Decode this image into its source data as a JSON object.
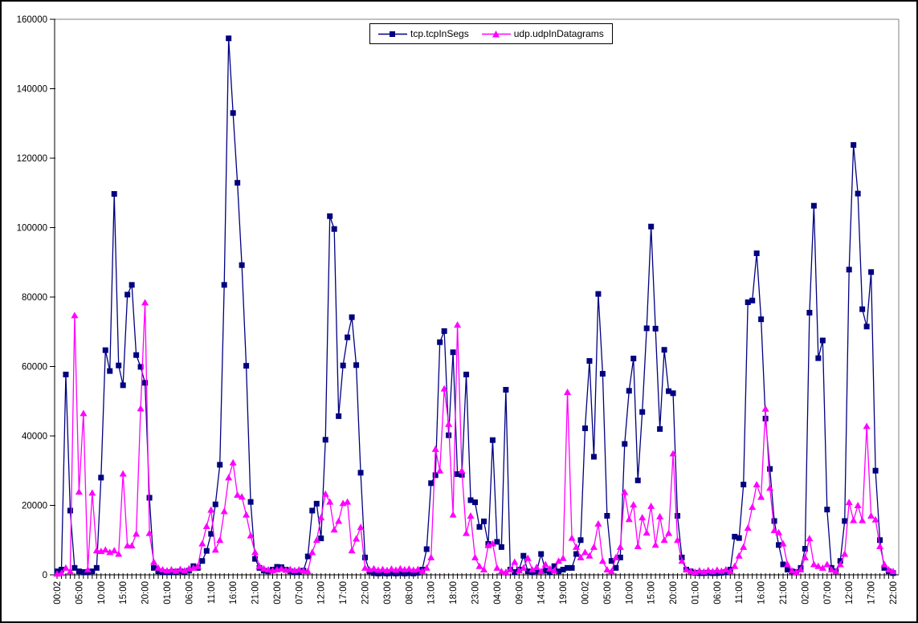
{
  "chart_data": {
    "type": "line",
    "title": "",
    "xlabel": "",
    "ylabel": "",
    "grid": false,
    "legend_position": "top-center",
    "ylim": [
      0,
      160000
    ],
    "ytick_step": 20000,
    "y_ticks": [
      0,
      20000,
      40000,
      60000,
      80000,
      100000,
      120000,
      140000,
      160000
    ],
    "n_points": 191,
    "label_every_n_points": 5,
    "x_labels": [
      "00:02",
      "05:00",
      "10:00",
      "15:00",
      "20:00",
      "01:00",
      "06:00",
      "11:00",
      "16:00",
      "21:00",
      "02:00",
      "07:00",
      "12:00",
      "17:00",
      "22:00",
      "03:00",
      "08:00",
      "13:00",
      "18:00",
      "23:00",
      "04:00",
      "09:00",
      "14:00",
      "19:00",
      "00:02",
      "05:00",
      "10:00",
      "15:00",
      "20:00",
      "01:00",
      "06:00",
      "11:00",
      "16:00",
      "21:00",
      "02:00",
      "07:00",
      "12:00",
      "17:00",
      "22:00"
    ],
    "series": [
      {
        "name": "tcp.tcpInSegs",
        "color": "#000080",
        "marker": "square",
        "values": [
          1000,
          1500,
          57700,
          18500,
          2000,
          1000,
          800,
          800,
          1000,
          2000,
          28000,
          64700,
          58700,
          109700,
          60300,
          54600,
          80700,
          83500,
          63300,
          59900,
          55300,
          22200,
          2000,
          1000,
          800,
          700,
          800,
          900,
          1000,
          900,
          1200,
          2500,
          2000,
          4000,
          6900,
          11800,
          20300,
          31700,
          83500,
          154500,
          133000,
          112900,
          89200,
          60200,
          21000,
          4600,
          2000,
          1200,
          1000,
          1500,
          2300,
          2200,
          1500,
          1000,
          800,
          900,
          1200,
          5300,
          18500,
          20500,
          10500,
          38900,
          103300,
          99600,
          45700,
          60300,
          68400,
          74200,
          60400,
          29400,
          5000,
          1000,
          500,
          400,
          500,
          400,
          500,
          400,
          500,
          400,
          500,
          400,
          600,
          1500,
          7400,
          26400,
          28700,
          67000,
          70200,
          40200,
          64100,
          29000,
          28800,
          57700,
          21500,
          20900,
          13800,
          15400,
          8900,
          38800,
          9500,
          8000,
          53300,
          1500,
          800,
          1500,
          5500,
          1000,
          800,
          1000,
          6000,
          1200,
          800,
          2500,
          1000,
          1500,
          2000,
          2000,
          6000,
          10000,
          42200,
          61600,
          34000,
          80900,
          57900,
          17000,
          4000,
          2000,
          5000,
          37700,
          53000,
          62300,
          27200,
          46900,
          71000,
          100300,
          70900,
          42000,
          64800,
          52900,
          52300,
          17000,
          5000,
          1500,
          1000,
          600,
          500,
          500,
          600,
          500,
          500,
          600,
          800,
          1500,
          11000,
          10600,
          26000,
          78500,
          79000,
          92600,
          73600,
          45000,
          30500,
          15500,
          8600,
          3000,
          1500,
          1000,
          800,
          2000,
          7500,
          75500,
          106300,
          62400,
          67500,
          18800,
          2000,
          1000,
          4000,
          15500,
          87900,
          123800,
          109800,
          76500,
          71500,
          87200,
          30000,
          10000,
          2000,
          1000,
          500
        ]
      },
      {
        "name": "udp.udpInDatagrams",
        "color": "#FF00FF",
        "marker": "triangle",
        "values": [
          300,
          500,
          2000,
          1000,
          74700,
          23900,
          46500,
          1500,
          23600,
          7000,
          6800,
          7200,
          6500,
          7000,
          6000,
          29100,
          8400,
          8400,
          11800,
          47900,
          78400,
          12000,
          3700,
          2000,
          1500,
          1200,
          1500,
          1100,
          1600,
          1200,
          1800,
          2000,
          2500,
          9000,
          14000,
          18700,
          7200,
          10000,
          18300,
          28000,
          32300,
          23000,
          22500,
          17300,
          11300,
          6500,
          2500,
          1800,
          1500,
          1200,
          1500,
          1800,
          1400,
          1600,
          1300,
          1500,
          1200,
          1000,
          6500,
          10000,
          16500,
          23300,
          21000,
          13000,
          15500,
          20600,
          21000,
          7000,
          10400,
          13700,
          2000,
          1500,
          1800,
          1400,
          1600,
          1300,
          1700,
          1400,
          1800,
          1500,
          1700,
          1400,
          1600,
          1000,
          2000,
          5000,
          36200,
          30000,
          53600,
          43400,
          17300,
          72000,
          30000,
          12000,
          17000,
          5000,
          2500,
          1500,
          8500,
          9000,
          2000,
          1000,
          800,
          1500,
          3700,
          1200,
          2000,
          4800,
          1500,
          2200,
          1000,
          3000,
          1800,
          1200,
          4000,
          4800,
          52600,
          10600,
          8000,
          5000,
          6500,
          5500,
          8000,
          14700,
          4000,
          1500,
          1000,
          5000,
          8000,
          23800,
          16000,
          20200,
          8200,
          16500,
          12100,
          19800,
          8600,
          16800,
          10000,
          12000,
          34900,
          10000,
          4000,
          1500,
          1000,
          800,
          1200,
          900,
          1300,
          1000,
          1400,
          1100,
          1500,
          1000,
          2500,
          5500,
          8000,
          13500,
          19500,
          26000,
          22400,
          47800,
          25000,
          12800,
          12200,
          9000,
          3000,
          1200,
          800,
          1500,
          5000,
          10500,
          3000,
          2500,
          2000,
          3000,
          1500,
          1000,
          3000,
          6000,
          20900,
          15700,
          20000,
          15700,
          42800,
          17000,
          15900,
          8200,
          3000,
          1500,
          1000
        ]
      }
    ],
    "axis_color": "#000000",
    "plot_border_color": "#808080",
    "background_color": "#FFFFFF"
  }
}
